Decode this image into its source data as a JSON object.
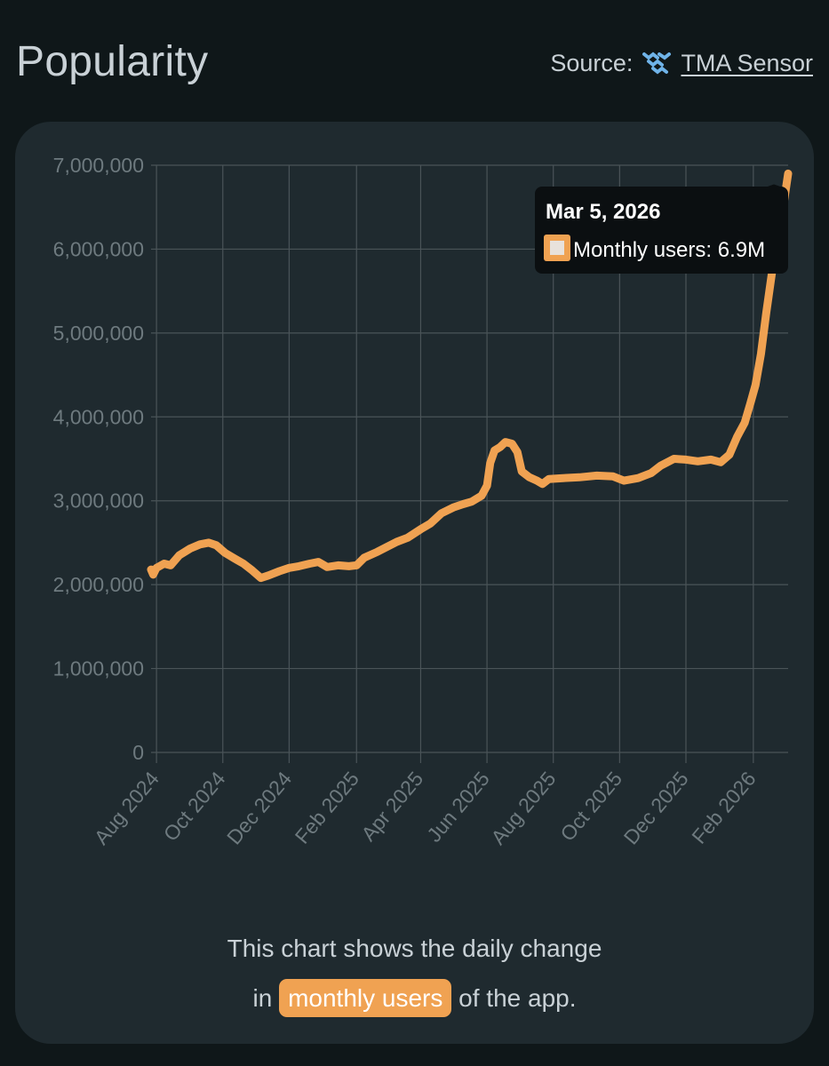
{
  "header": {
    "title": "Popularity",
    "source_label": "Source:",
    "source_link": "TMA Sensor",
    "logo_icon": "tma-sensor-logo-icon"
  },
  "tooltip": {
    "date": "Mar 5, 2026",
    "label": "Monthly users: 6.9M"
  },
  "caption": {
    "line1": "This chart shows the daily change",
    "prefix": "in",
    "highlight": "monthly users",
    "suffix": "of the app."
  },
  "colors": {
    "line": "#f0a252",
    "grid": "#4a5458",
    "axis_text": "#6e7a7f"
  },
  "chart_data": {
    "type": "line",
    "title": "",
    "xlabel": "",
    "ylabel": "",
    "ylim": [
      0,
      7000000
    ],
    "yticks": [
      {
        "value": 0,
        "label": "0"
      },
      {
        "value": 1000000,
        "label": "1,000,000"
      },
      {
        "value": 2000000,
        "label": "2,000,000"
      },
      {
        "value": 3000000,
        "label": "3,000,000"
      },
      {
        "value": 4000000,
        "label": "4,000,000"
      },
      {
        "value": 5000000,
        "label": "5,000,000"
      },
      {
        "value": 6000000,
        "label": "6,000,000"
      },
      {
        "value": 7000000,
        "label": "7,000,000"
      }
    ],
    "xlim": [
      "2024-07-27",
      "2026-03-05"
    ],
    "xticks": [
      {
        "date": "2024-08-01",
        "label": "Aug 2024"
      },
      {
        "date": "2024-10-01",
        "label": "Oct 2024"
      },
      {
        "date": "2024-12-01",
        "label": "Dec 2024"
      },
      {
        "date": "2025-02-01",
        "label": "Feb 2025"
      },
      {
        "date": "2025-04-01",
        "label": "Apr 2025"
      },
      {
        "date": "2025-06-01",
        "label": "Jun 2025"
      },
      {
        "date": "2025-08-01",
        "label": "Aug 2025"
      },
      {
        "date": "2025-10-01",
        "label": "Oct 2025"
      },
      {
        "date": "2025-12-01",
        "label": "Dec 2025"
      },
      {
        "date": "2026-02-01",
        "label": "Feb 2026"
      }
    ],
    "series": [
      {
        "name": "Monthly users",
        "points": [
          [
            "2024-07-27",
            2180000
          ],
          [
            "2024-07-29",
            2120000
          ],
          [
            "2024-08-01",
            2200000
          ],
          [
            "2024-08-08",
            2250000
          ],
          [
            "2024-08-14",
            2230000
          ],
          [
            "2024-08-22",
            2350000
          ],
          [
            "2024-09-01",
            2430000
          ],
          [
            "2024-09-10",
            2480000
          ],
          [
            "2024-09-18",
            2500000
          ],
          [
            "2024-09-25",
            2470000
          ],
          [
            "2024-10-03",
            2380000
          ],
          [
            "2024-10-12",
            2310000
          ],
          [
            "2024-10-20",
            2250000
          ],
          [
            "2024-10-28",
            2170000
          ],
          [
            "2024-11-05",
            2080000
          ],
          [
            "2024-11-12",
            2110000
          ],
          [
            "2024-11-22",
            2160000
          ],
          [
            "2024-12-01",
            2200000
          ],
          [
            "2024-12-10",
            2220000
          ],
          [
            "2024-12-20",
            2250000
          ],
          [
            "2024-12-28",
            2270000
          ],
          [
            "2025-01-05",
            2210000
          ],
          [
            "2025-01-15",
            2230000
          ],
          [
            "2025-01-25",
            2220000
          ],
          [
            "2025-02-01",
            2230000
          ],
          [
            "2025-02-08",
            2320000
          ],
          [
            "2025-02-20",
            2390000
          ],
          [
            "2025-03-01",
            2450000
          ],
          [
            "2025-03-10",
            2510000
          ],
          [
            "2025-03-20",
            2560000
          ],
          [
            "2025-04-01",
            2660000
          ],
          [
            "2025-04-10",
            2730000
          ],
          [
            "2025-04-20",
            2850000
          ],
          [
            "2025-05-01",
            2920000
          ],
          [
            "2025-05-10",
            2960000
          ],
          [
            "2025-05-18",
            2990000
          ],
          [
            "2025-05-27",
            3060000
          ],
          [
            "2025-06-01",
            3180000
          ],
          [
            "2025-06-04",
            3450000
          ],
          [
            "2025-06-08",
            3600000
          ],
          [
            "2025-06-13",
            3640000
          ],
          [
            "2025-06-18",
            3700000
          ],
          [
            "2025-06-24",
            3680000
          ],
          [
            "2025-06-29",
            3580000
          ],
          [
            "2025-07-03",
            3350000
          ],
          [
            "2025-07-10",
            3280000
          ],
          [
            "2025-07-17",
            3240000
          ],
          [
            "2025-07-22",
            3200000
          ],
          [
            "2025-07-28",
            3260000
          ],
          [
            "2025-08-10",
            3270000
          ],
          [
            "2025-08-25",
            3280000
          ],
          [
            "2025-09-10",
            3300000
          ],
          [
            "2025-09-25",
            3290000
          ],
          [
            "2025-10-05",
            3240000
          ],
          [
            "2025-10-18",
            3270000
          ],
          [
            "2025-10-30",
            3330000
          ],
          [
            "2025-11-08",
            3420000
          ],
          [
            "2025-11-20",
            3500000
          ],
          [
            "2025-12-01",
            3490000
          ],
          [
            "2025-12-12",
            3470000
          ],
          [
            "2025-12-24",
            3490000
          ],
          [
            "2026-01-02",
            3460000
          ],
          [
            "2026-01-10",
            3550000
          ],
          [
            "2026-01-17",
            3760000
          ],
          [
            "2026-01-24",
            3930000
          ],
          [
            "2026-01-29",
            4150000
          ],
          [
            "2026-02-03",
            4380000
          ],
          [
            "2026-02-08",
            4750000
          ],
          [
            "2026-02-13",
            5250000
          ],
          [
            "2026-02-19",
            5800000
          ],
          [
            "2026-02-25",
            6300000
          ],
          [
            "2026-03-01",
            6550000
          ],
          [
            "2026-03-05",
            6900000
          ]
        ]
      }
    ],
    "hover_point": {
      "date": "2026-03-05",
      "value": 6900000
    },
    "grid": true,
    "legend": "none"
  }
}
